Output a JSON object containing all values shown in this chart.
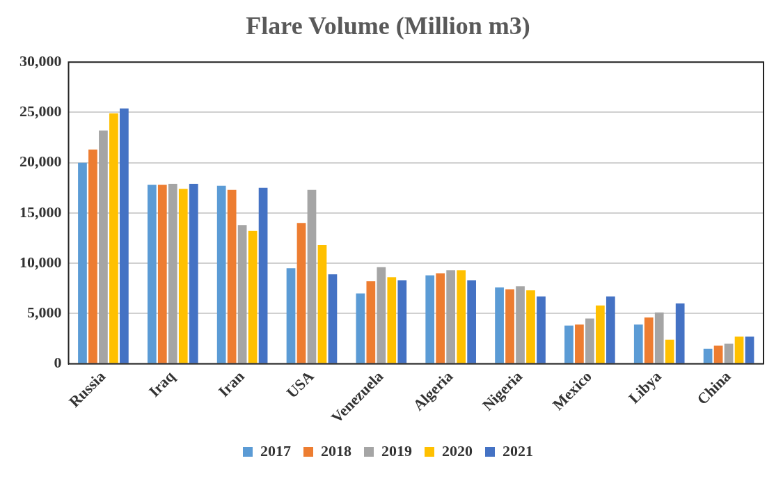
{
  "chart_data": {
    "type": "bar",
    "title": "Flare Volume (Million m3)",
    "categories": [
      "Russia",
      "Iraq",
      "Iran",
      "USA",
      "Venezuela",
      "Algeria",
      "Nigeria",
      "Mexico",
      "Libya",
      "China"
    ],
    "series": [
      {
        "name": "2017",
        "color": "#5b9bd5",
        "values": [
          20000,
          17800,
          17700,
          9500,
          7000,
          8800,
          7600,
          3800,
          3900,
          1500
        ]
      },
      {
        "name": "2018",
        "color": "#ed7d31",
        "values": [
          21300,
          17800,
          17300,
          14000,
          8200,
          9000,
          7400,
          3900,
          4600,
          1800
        ]
      },
      {
        "name": "2019",
        "color": "#a5a5a5",
        "values": [
          23200,
          17900,
          13800,
          17300,
          9600,
          9300,
          7700,
          4500,
          5100,
          2000
        ]
      },
      {
        "name": "2020",
        "color": "#ffc000",
        "values": [
          24900,
          17400,
          13200,
          11800,
          8600,
          9300,
          7300,
          5800,
          2400,
          2700
        ]
      },
      {
        "name": "2021",
        "color": "#4472c4",
        "values": [
          25400,
          17900,
          17500,
          8900,
          8300,
          8300,
          6700,
          6700,
          6000,
          2700
        ]
      }
    ],
    "ylim": [
      0,
      30000
    ],
    "yticks": [
      {
        "value": 0,
        "label": "0"
      },
      {
        "value": 5000,
        "label": "5,000"
      },
      {
        "value": 10000,
        "label": "10,000"
      },
      {
        "value": 15000,
        "label": "15,000"
      },
      {
        "value": 20000,
        "label": "20,000"
      },
      {
        "value": 25000,
        "label": "25,000"
      },
      {
        "value": 30000,
        "label": "30,000"
      }
    ],
    "grid": "y",
    "legend": "bottom"
  }
}
